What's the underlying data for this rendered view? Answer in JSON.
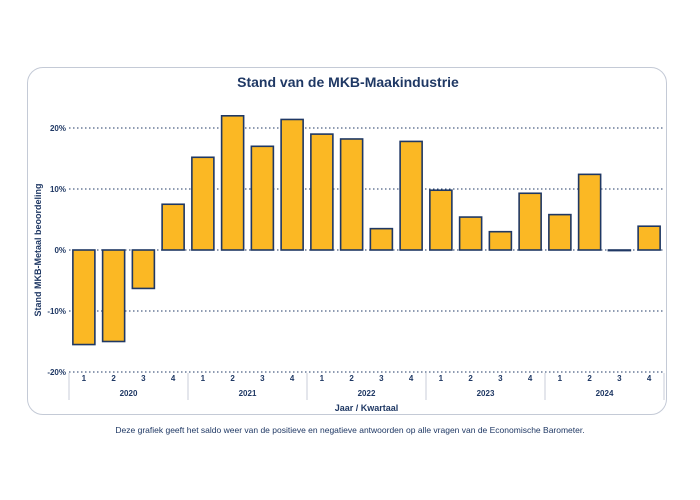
{
  "chart_data": {
    "type": "bar",
    "title": "Stand van de MKB-Maakindustrie",
    "ylabel": "Stand MKB-Metaal beoordeling",
    "xlabel": "Jaar / Kwartaal",
    "ylim": [
      -20,
      20
    ],
    "yticks": [
      "-20%",
      "-10%",
      "0%",
      "10%",
      "20%"
    ],
    "ytick_values": [
      -20,
      -10,
      0,
      10,
      20
    ],
    "grid": true,
    "groups": [
      {
        "label": "2020",
        "quarters": [
          "1",
          "2",
          "3",
          "4"
        ]
      },
      {
        "label": "2021",
        "quarters": [
          "1",
          "2",
          "3",
          "4"
        ]
      },
      {
        "label": "2022",
        "quarters": [
          "1",
          "2",
          "3",
          "4"
        ]
      },
      {
        "label": "2023",
        "quarters": [
          "1",
          "2",
          "3",
          "4"
        ]
      },
      {
        "label": "2024",
        "quarters": [
          "1",
          "2",
          "3",
          "4"
        ]
      }
    ],
    "values": [
      -15.5,
      -15.0,
      -6.3,
      7.5,
      15.2,
      22.0,
      17.0,
      21.4,
      19.0,
      18.2,
      3.5,
      17.8,
      9.8,
      5.4,
      3.0,
      9.3,
      5.8,
      12.4,
      0.0,
      3.9
    ],
    "colors": {
      "bar": "#fbb824",
      "outline": "#1f3864",
      "text": "#1f3864"
    }
  },
  "caption": "Deze grafiek geeft het saldo weer van de positieve en negatieve antwoorden op alle vragen van de Economische Barometer."
}
